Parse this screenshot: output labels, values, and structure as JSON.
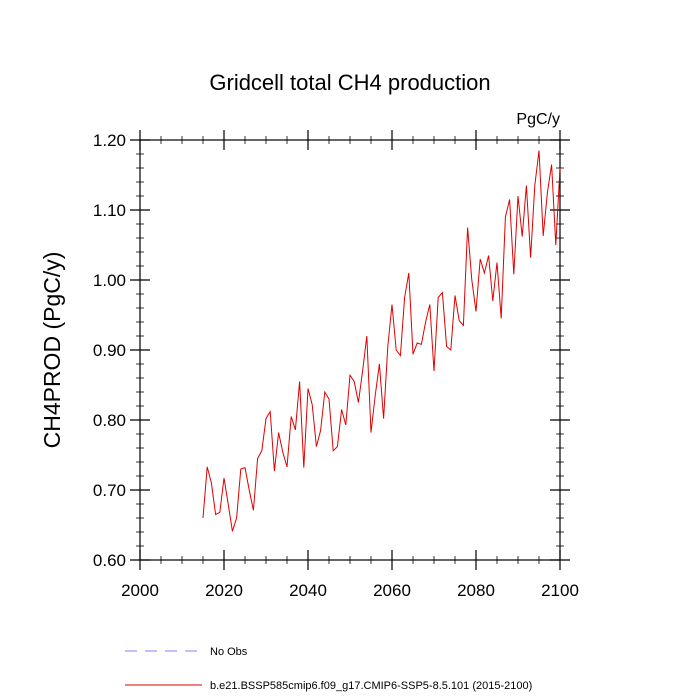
{
  "chart_data": {
    "type": "line",
    "title": "Gridcell total CH4 production",
    "units_label": "PgC/y",
    "ylabel": "CH4PROD  (PgC/y)",
    "xlabel": "",
    "xlim": [
      2000,
      2100
    ],
    "ylim": [
      0.6,
      1.2
    ],
    "xticks": [
      2000,
      2020,
      2040,
      2060,
      2080,
      2100
    ],
    "xtick_labels": [
      "2000",
      "2020",
      "2040",
      "2060",
      "2080",
      "2100"
    ],
    "yticks": [
      0.6,
      0.7,
      0.8,
      0.9,
      1.0,
      1.1,
      1.2
    ],
    "ytick_labels": [
      "0.60",
      "0.70",
      "0.80",
      "0.90",
      "1.00",
      "1.10",
      "1.20"
    ],
    "grid": false,
    "legend_position": "bottom",
    "series": [
      {
        "name": "b.e21.BSSP585cmip6.f09_g17.CMIP6-SSP5-8.5.101 (2015-2100)",
        "color": "#e00000",
        "style": "solid",
        "x": [
          2015,
          2016,
          2017,
          2018,
          2019,
          2020,
          2021,
          2022,
          2023,
          2024,
          2025,
          2026,
          2027,
          2028,
          2029,
          2030,
          2031,
          2032,
          2033,
          2034,
          2035,
          2036,
          2037,
          2038,
          2039,
          2040,
          2041,
          2042,
          2043,
          2044,
          2045,
          2046,
          2047,
          2048,
          2049,
          2050,
          2051,
          2052,
          2053,
          2054,
          2055,
          2056,
          2057,
          2058,
          2059,
          2060,
          2061,
          2062,
          2063,
          2064,
          2065,
          2066,
          2067,
          2068,
          2069,
          2070,
          2071,
          2072,
          2073,
          2074,
          2075,
          2076,
          2077,
          2078,
          2079,
          2080,
          2081,
          2082,
          2083,
          2084,
          2085,
          2086,
          2087,
          2088,
          2089,
          2090,
          2091,
          2092,
          2093,
          2094,
          2095,
          2096,
          2097,
          2098,
          2099,
          2100
        ],
        "y": [
          0.66,
          0.733,
          0.71,
          0.665,
          0.668,
          0.717,
          0.68,
          0.641,
          0.66,
          0.73,
          0.732,
          0.7,
          0.671,
          0.745,
          0.756,
          0.802,
          0.812,
          0.727,
          0.782,
          0.754,
          0.733,
          0.805,
          0.786,
          0.855,
          0.732,
          0.845,
          0.822,
          0.762,
          0.785,
          0.84,
          0.83,
          0.756,
          0.762,
          0.815,
          0.793,
          0.864,
          0.855,
          0.825,
          0.87,
          0.92,
          0.782,
          0.835,
          0.88,
          0.802,
          0.905,
          0.965,
          0.9,
          0.892,
          0.975,
          1.01,
          0.894,
          0.91,
          0.908,
          0.94,
          0.965,
          0.87,
          0.975,
          0.982,
          0.905,
          0.9,
          0.978,
          0.942,
          0.935,
          1.075,
          1.0,
          0.955,
          1.03,
          1.01,
          1.035,
          0.97,
          1.025,
          0.945,
          1.09,
          1.115,
          1.008,
          1.12,
          1.062,
          1.135,
          1.032,
          1.135,
          1.185,
          1.063,
          1.125,
          1.165,
          1.05,
          1.16
        ]
      },
      {
        "name": "No Obs",
        "color": "#8080ff",
        "style": "dashed",
        "x": [],
        "y": []
      }
    ]
  }
}
